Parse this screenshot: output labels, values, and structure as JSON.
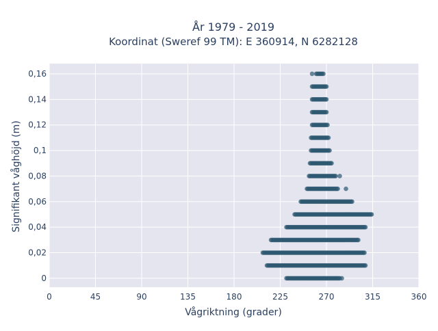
{
  "chart_data": {
    "type": "scatter",
    "title": "År 1979 - 2019",
    "subtitle": "Koordinat (Sweref 99 TM): E 360914, N 6282128",
    "xlabel": "Vågriktning (grader)",
    "ylabel": "Signifikant våghöjd (m)",
    "xlim": [
      0,
      360
    ],
    "ylim": [
      -0.007,
      0.168
    ],
    "x_ticks": [
      0,
      45,
      90,
      135,
      180,
      225,
      270,
      315,
      360
    ],
    "x_tick_labels": [
      "0",
      "45",
      "90",
      "135",
      "180",
      "225",
      "270",
      "315",
      "360"
    ],
    "y_ticks": [
      0,
      0.02,
      0.04,
      0.06,
      0.08,
      0.1,
      0.12,
      0.14,
      0.16
    ],
    "y_tick_labels": [
      "0",
      "0,02",
      "0,04",
      "0,06",
      "0,08",
      "0,1",
      "0,12",
      "0,14",
      "0,16"
    ],
    "grid": true,
    "legend": "none",
    "colors": {
      "plot_bg": "#e5e5f0",
      "grid": "#ffffff",
      "marker": "#2e5871",
      "text": "#2a3f5f"
    },
    "bands": [
      {
        "y": 0.0,
        "x_min": 231,
        "x_max": 283,
        "outliers": [
          285
        ]
      },
      {
        "y": 0.01,
        "x_min": 212,
        "x_max": 308,
        "outliers": []
      },
      {
        "y": 0.02,
        "x_min": 208,
        "x_max": 307,
        "outliers": []
      },
      {
        "y": 0.03,
        "x_min": 216,
        "x_max": 301,
        "outliers": []
      },
      {
        "y": 0.04,
        "x_min": 231,
        "x_max": 308,
        "outliers": []
      },
      {
        "y": 0.05,
        "x_min": 239,
        "x_max": 314,
        "outliers": []
      },
      {
        "y": 0.06,
        "x_min": 245,
        "x_max": 295,
        "outliers": []
      },
      {
        "y": 0.07,
        "x_min": 251,
        "x_max": 281,
        "outliers": [
          289
        ]
      },
      {
        "y": 0.08,
        "x_min": 253,
        "x_max": 279,
        "outliers": [
          283
        ]
      },
      {
        "y": 0.09,
        "x_min": 254,
        "x_max": 275,
        "outliers": []
      },
      {
        "y": 0.1,
        "x_min": 255,
        "x_max": 273,
        "outliers": []
      },
      {
        "y": 0.11,
        "x_min": 255,
        "x_max": 272,
        "outliers": []
      },
      {
        "y": 0.12,
        "x_min": 256,
        "x_max": 271,
        "outliers": []
      },
      {
        "y": 0.13,
        "x_min": 256,
        "x_max": 270,
        "outliers": []
      },
      {
        "y": 0.14,
        "x_min": 256,
        "x_max": 270,
        "outliers": []
      },
      {
        "y": 0.15,
        "x_min": 256,
        "x_max": 270,
        "outliers": []
      },
      {
        "y": 0.16,
        "x_min": 260,
        "x_max": 267,
        "outliers": [
          256
        ]
      }
    ]
  }
}
